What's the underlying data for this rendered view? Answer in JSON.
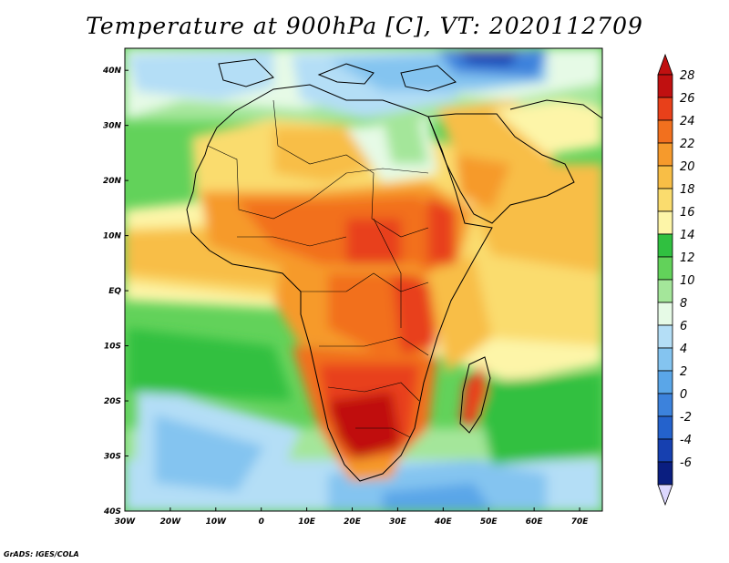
{
  "title": "Temperature at 900hPa [C], VT: 2020112709",
  "credit": "GrADS: IGES/COLA",
  "map": {
    "region": "Africa",
    "lon_range": [
      -30,
      75
    ],
    "lat_range": [
      -40,
      44
    ],
    "lon_ticks": [
      {
        "value": -30,
        "label": "30W"
      },
      {
        "value": -20,
        "label": "20W"
      },
      {
        "value": -10,
        "label": "10W"
      },
      {
        "value": 0,
        "label": "0"
      },
      {
        "value": 10,
        "label": "10E"
      },
      {
        "value": 20,
        "label": "20E"
      },
      {
        "value": 30,
        "label": "30E"
      },
      {
        "value": 40,
        "label": "40E"
      },
      {
        "value": 50,
        "label": "50E"
      },
      {
        "value": 60,
        "label": "60E"
      },
      {
        "value": 70,
        "label": "70E"
      }
    ],
    "lat_ticks": [
      {
        "value": 40,
        "label": "40N"
      },
      {
        "value": 30,
        "label": "30N"
      },
      {
        "value": 20,
        "label": "20N"
      },
      {
        "value": 10,
        "label": "10N"
      },
      {
        "value": 0,
        "label": "EQ"
      },
      {
        "value": -10,
        "label": "10S"
      },
      {
        "value": -20,
        "label": "20S"
      },
      {
        "value": -30,
        "label": "30S"
      },
      {
        "value": -40,
        "label": "40S"
      }
    ]
  },
  "colorbar": {
    "unit": "C",
    "levels": [
      {
        "label": "28",
        "color": "#c01010"
      },
      {
        "label": "26",
        "color": "#e8401a"
      },
      {
        "label": "24",
        "color": "#f2701e"
      },
      {
        "label": "22",
        "color": "#f69a2c"
      },
      {
        "label": "20",
        "color": "#f8be46"
      },
      {
        "label": "18",
        "color": "#fadc6e"
      },
      {
        "label": "16",
        "color": "#fdf5a8"
      },
      {
        "label": "14",
        "color": "#30c040"
      },
      {
        "label": "12",
        "color": "#62d25a"
      },
      {
        "label": "10",
        "color": "#a4e69a"
      },
      {
        "label": "8",
        "color": "#e6fae6"
      },
      {
        "label": "6",
        "color": "#b4def6"
      },
      {
        "label": "4",
        "color": "#84c4f0"
      },
      {
        "label": "2",
        "color": "#5aa6e8"
      },
      {
        "label": "0",
        "color": "#3c82dc"
      },
      {
        "label": "-2",
        "color": "#2462cc"
      },
      {
        "label": "-4",
        "color": "#1640b0"
      },
      {
        "label": "-6",
        "color": "#0a1e80"
      }
    ],
    "under_color": "#ddd8ff"
  }
}
